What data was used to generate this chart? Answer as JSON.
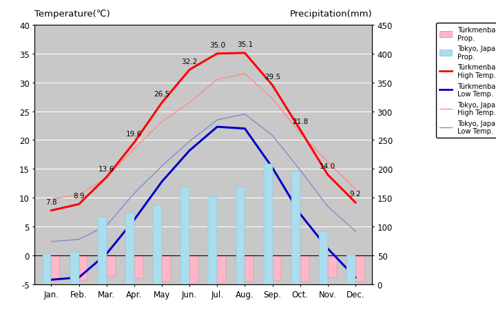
{
  "months": [
    "Jan.",
    "Feb.",
    "Mar.",
    "Apr.",
    "May",
    "Jun.",
    "Jul.",
    "Aug.",
    "Sep.",
    "Oct.",
    "Nov.",
    "Dec."
  ],
  "turkmen_high_temp": [
    7.8,
    8.9,
    13.6,
    19.6,
    26.5,
    32.2,
    35.0,
    35.1,
    29.5,
    21.8,
    14.0,
    9.2
  ],
  "turkmen_low_temp": [
    -4.2,
    -3.8,
    0.3,
    6.2,
    12.8,
    18.2,
    22.3,
    22.0,
    15.2,
    7.2,
    1.2,
    -3.8
  ],
  "tokyo_high_temp": [
    9.8,
    10.5,
    13.5,
    18.5,
    23.2,
    26.5,
    30.5,
    31.5,
    27.2,
    21.2,
    16.2,
    11.5
  ],
  "tokyo_low_temp": [
    2.4,
    2.8,
    5.2,
    10.8,
    15.5,
    19.8,
    23.5,
    24.5,
    20.8,
    14.8,
    8.5,
    4.2
  ],
  "tokyo_precip_mm": [
    52,
    56,
    117,
    124,
    137,
    168,
    153,
    168,
    209,
    197,
    92,
    51
  ],
  "turkmen_precip_height": [
    4.5,
    4.3,
    3.6,
    3.9,
    4.5,
    4.8,
    4.8,
    4.5,
    4.3,
    4.5,
    3.8,
    4.5
  ],
  "temp_ylim": [
    -5,
    40
  ],
  "precip_ylim": [
    0,
    450
  ],
  "plot_bg_color": "#c8c8c8",
  "turkmen_high_color": "#ff0000",
  "turkmen_low_color": "#0000cc",
  "tokyo_high_color": "#ff8888",
  "tokyo_low_color": "#8888cc",
  "turkmen_bar_color": "#ffb6c8",
  "tokyo_bar_color": "#aaddee",
  "title_left": "Temperature(℃)",
  "title_right": "Precipitation(mm)",
  "label_turkmen_precip": "Türkmenbasy\nProp.",
  "label_tokyo_precip": "Tokyo, Japan\nProp.",
  "label_turkmen_high": "Türkmenbasy\nHigh Temp.",
  "label_turkmen_low": "Türkmenbasy\nLow Temp.",
  "label_tokyo_high": "Tokyo, Japan\nHigh Temp.",
  "label_tokyo_low": "Tokyo, Japan\nLow Temp."
}
